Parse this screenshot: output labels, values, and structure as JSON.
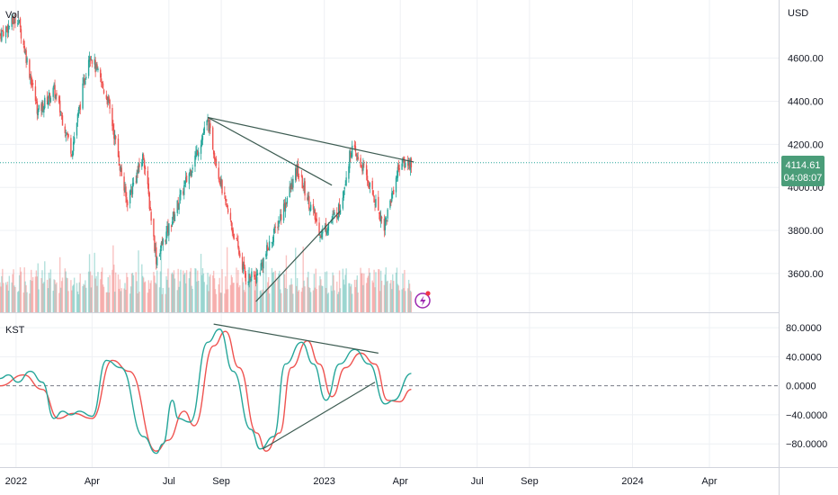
{
  "header": {
    "price_pane_label": "Vol",
    "kst_pane_label": "KST",
    "currency": "USD"
  },
  "price_badge": {
    "price": "4114.61",
    "countdown": "04:08:07"
  },
  "colors": {
    "up": "#26a69a",
    "down": "#ef5350",
    "trend": "#3d5c52",
    "kst": "#26a69a",
    "signal": "#ef5350",
    "badge": "#4a9d79",
    "grid": "#eef0f4",
    "axis_text": "#131722",
    "icon": "#9c27b0"
  },
  "icons": {
    "flash": "lightning-bolt-icon"
  },
  "chart_data": [
    {
      "type": "candlestick",
      "title": "",
      "ylabel": "USD",
      "ylim": [
        3420,
        4870
      ],
      "y_ticks": [
        "3600.00",
        "3800.00",
        "4000.00",
        "4200.00",
        "4400.00",
        "4600.00"
      ],
      "x_ticks": [
        "2022",
        "Apr",
        "Jul",
        "Sep",
        "2023",
        "Apr",
        "Jul",
        "Sep",
        "2024",
        "Apr"
      ],
      "x_range": [
        "2021-12-13",
        "2024-06-22"
      ],
      "last_price": 4114.61,
      "series": [
        {
          "name": "close",
          "points": [
            [
              "2021-12-13",
              4710
            ],
            [
              "2022-01-03",
              4790
            ],
            [
              "2022-01-27",
              4350
            ],
            [
              "2022-02-15",
              4450
            ],
            [
              "2022-03-08",
              4170
            ],
            [
              "2022-03-29",
              4630
            ],
            [
              "2022-04-20",
              4400
            ],
            [
              "2022-05-12",
              3930
            ],
            [
              "2022-06-01",
              4150
            ],
            [
              "2022-06-16",
              3667
            ],
            [
              "2022-07-05",
              3850
            ],
            [
              "2022-08-16",
              4305
            ],
            [
              "2022-09-06",
              3920
            ],
            [
              "2022-09-30",
              3585
            ],
            [
              "2022-10-12",
              3577
            ],
            [
              "2022-11-02",
              3780
            ],
            [
              "2022-11-30",
              4080
            ],
            [
              "2022-12-28",
              3783
            ],
            [
              "2023-01-19",
              3900
            ],
            [
              "2023-02-02",
              4180
            ],
            [
              "2023-02-16",
              4090
            ],
            [
              "2023-03-13",
              3820
            ],
            [
              "2023-03-31",
              4109
            ],
            [
              "2023-04-14",
              4114.61
            ]
          ]
        }
      ],
      "volume": {
        "name": "Vol"
      },
      "trendlines": [
        {
          "from": [
            "2022-08-16",
            4325
          ],
          "to": [
            "2023-04-17",
            4118
          ]
        },
        {
          "from": [
            "2022-08-16",
            4325
          ],
          "to": [
            "2023-01-10",
            4010
          ]
        },
        {
          "from": [
            "2022-10-12",
            3470
          ],
          "to": [
            "2023-01-20",
            3890
          ]
        }
      ]
    },
    {
      "type": "line",
      "title": "KST",
      "ylim": [
        -112,
        100
      ],
      "y_ticks": [
        "80.0000",
        "40.0000",
        "0.0000",
        "−40.0000",
        "−80.0000"
      ],
      "zero_line": true,
      "series": [
        {
          "name": "kst",
          "points": [
            [
              "2021-12-13",
              10
            ],
            [
              "2021-12-23",
              15
            ],
            [
              "2022-01-03",
              5
            ],
            [
              "2022-01-18",
              20
            ],
            [
              "2022-02-01",
              5
            ],
            [
              "2022-02-15",
              -45
            ],
            [
              "2022-02-25",
              -35
            ],
            [
              "2022-03-07",
              -40
            ],
            [
              "2022-03-17",
              -35
            ],
            [
              "2022-04-01",
              -42
            ],
            [
              "2022-04-18",
              35
            ],
            [
              "2022-05-05",
              25
            ],
            [
              "2022-06-01",
              -70
            ],
            [
              "2022-06-16",
              -93
            ],
            [
              "2022-06-24",
              -80
            ],
            [
              "2022-07-05",
              -20
            ],
            [
              "2022-07-12",
              -45
            ],
            [
              "2022-07-26",
              -50
            ],
            [
              "2022-08-16",
              60
            ],
            [
              "2022-08-30",
              78
            ],
            [
              "2022-09-15",
              20
            ],
            [
              "2022-10-06",
              -60
            ],
            [
              "2022-10-17",
              -87
            ],
            [
              "2022-11-02",
              -70
            ],
            [
              "2022-11-16",
              30
            ],
            [
              "2022-12-05",
              60
            ],
            [
              "2022-12-19",
              30
            ],
            [
              "2023-01-03",
              -20
            ],
            [
              "2023-01-19",
              30
            ],
            [
              "2023-02-06",
              50
            ],
            [
              "2023-02-23",
              30
            ],
            [
              "2023-03-14",
              -25
            ],
            [
              "2023-03-24",
              -20
            ],
            [
              "2023-04-14",
              17
            ]
          ]
        },
        {
          "name": "signal",
          "points": [
            [
              "2021-12-13",
              0
            ],
            [
              "2022-01-10",
              15
            ],
            [
              "2022-02-01",
              -5
            ],
            [
              "2022-02-20",
              -45
            ],
            [
              "2022-03-10",
              -38
            ],
            [
              "2022-04-01",
              -45
            ],
            [
              "2022-04-25",
              35
            ],
            [
              "2022-05-15",
              20
            ],
            [
              "2022-06-16",
              -90
            ],
            [
              "2022-06-30",
              -75
            ],
            [
              "2022-07-19",
              -35
            ],
            [
              "2022-07-31",
              -55
            ],
            [
              "2022-08-23",
              55
            ],
            [
              "2022-09-06",
              75
            ],
            [
              "2022-09-22",
              25
            ],
            [
              "2022-10-13",
              -65
            ],
            [
              "2022-10-24",
              -90
            ],
            [
              "2022-11-09",
              -65
            ],
            [
              "2022-11-23",
              25
            ],
            [
              "2022-12-12",
              62
            ],
            [
              "2022-12-26",
              30
            ],
            [
              "2023-01-10",
              -15
            ],
            [
              "2023-01-26",
              25
            ],
            [
              "2023-02-13",
              45
            ],
            [
              "2023-03-02",
              30
            ],
            [
              "2023-03-17",
              -20
            ],
            [
              "2023-03-31",
              -22
            ],
            [
              "2023-04-14",
              -5
            ]
          ]
        }
      ],
      "trendlines": [
        {
          "from": [
            "2022-08-23",
            85
          ],
          "to": [
            "2023-03-06",
            45
          ]
        },
        {
          "from": [
            "2022-10-20",
            -87
          ],
          "to": [
            "2023-03-02",
            5
          ]
        }
      ]
    }
  ]
}
